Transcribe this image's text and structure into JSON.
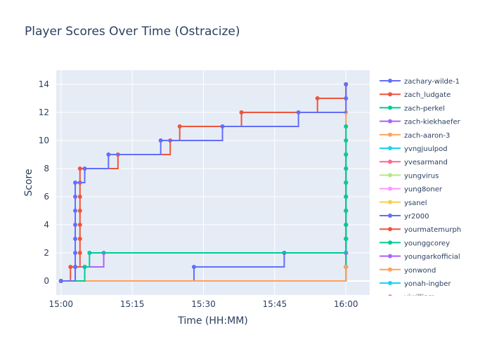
{
  "chart_data": {
    "type": "line",
    "title": "Player Scores Over Time (Ostracize)",
    "xlabel": "Time (HH:MM)",
    "ylabel": "Score",
    "x_unit": "HH:MM",
    "xlim": [
      "14:59",
      "16:05"
    ],
    "ylim": [
      -1,
      15
    ],
    "x_ticks": [
      "15:00",
      "15:15",
      "15:30",
      "15:45",
      "16:00"
    ],
    "y_ticks": [
      0,
      2,
      4,
      6,
      8,
      10,
      12,
      14
    ],
    "grid": true,
    "line_shape": "step-after",
    "legend_position": "right",
    "legend_scrollable": true,
    "series": [
      {
        "name": "zachary-wilde-1",
        "color": "#636efa",
        "x": [
          "15:00",
          "15:03",
          "15:03",
          "15:03",
          "15:03",
          "15:03",
          "15:03",
          "15:03",
          "15:05",
          "15:10",
          "15:21",
          "15:34",
          "15:50",
          "16:00",
          "16:00"
        ],
        "y": [
          0,
          1,
          2,
          3,
          4,
          5,
          6,
          7,
          8,
          9,
          10,
          11,
          12,
          13,
          14
        ]
      },
      {
        "name": "zach_ludgate",
        "color": "#ef553b",
        "x": [
          "15:00",
          "15:02",
          "15:04",
          "15:04",
          "15:04",
          "15:04",
          "15:04",
          "15:04",
          "15:04",
          "15:12",
          "15:23",
          "15:25",
          "15:38",
          "15:54",
          "16:00"
        ],
        "y": [
          0,
          1,
          2,
          3,
          4,
          5,
          6,
          7,
          8,
          9,
          10,
          11,
          12,
          13,
          14
        ]
      },
      {
        "name": "zach-perkel",
        "color": "#00cc96",
        "x": [
          "15:00",
          "15:05",
          "15:06",
          "16:00"
        ],
        "y": [
          0,
          1,
          2,
          3
        ]
      },
      {
        "name": "zach-kiekhaefer",
        "color": "#ab63fa",
        "x": [
          "15:00",
          "15:03",
          "15:05",
          "15:09",
          "16:00"
        ],
        "y": [
          0,
          1,
          1,
          2,
          2
        ]
      },
      {
        "name": "zach-aaron-3",
        "color": "#ffa15a",
        "x": [
          "15:00",
          "16:00"
        ],
        "y": [
          0,
          1
        ]
      },
      {
        "name": "yvngjuulpod",
        "color": "#19d3f3",
        "x": [
          "15:00",
          "16:00"
        ],
        "y": [
          0,
          1
        ]
      },
      {
        "name": "yvesarmand",
        "color": "#ff6692",
        "x": [
          "15:00",
          "16:00"
        ],
        "y": [
          0,
          1
        ]
      },
      {
        "name": "yungvirus",
        "color": "#b6e880",
        "x": [
          "15:00",
          "16:00"
        ],
        "y": [
          0,
          1
        ]
      },
      {
        "name": "yung8oner",
        "color": "#ff97ff",
        "x": [
          "15:00",
          "16:00"
        ],
        "y": [
          0,
          1
        ]
      },
      {
        "name": "ysanel",
        "color": "#fecb52",
        "x": [
          "15:00",
          "16:00"
        ],
        "y": [
          0,
          1
        ]
      },
      {
        "name": "yr2000",
        "color": "#636efa",
        "x": [
          "15:00",
          "15:28",
          "15:47",
          "16:00"
        ],
        "y": [
          0,
          1,
          2,
          3
        ]
      },
      {
        "name": "yourmatemurph",
        "color": "#ef553b",
        "x": [
          "15:00",
          "16:00"
        ],
        "y": [
          0,
          1
        ]
      },
      {
        "name": "younggcorey",
        "color": "#00cc96",
        "x": [
          "15:00",
          "16:00",
          "16:00",
          "16:00",
          "16:00",
          "16:00",
          "16:00",
          "16:00",
          "16:00",
          "16:00",
          "16:00",
          "16:00"
        ],
        "y": [
          0,
          1,
          2,
          3,
          4,
          5,
          6,
          7,
          8,
          9,
          10,
          11
        ]
      },
      {
        "name": "youngarkofficial",
        "color": "#ab63fa",
        "x": [
          "15:00",
          "16:00",
          "16:00",
          "16:00",
          "16:00",
          "16:00",
          "16:00",
          "16:00",
          "16:00",
          "16:00"
        ],
        "y": [
          0,
          1,
          2,
          3,
          4,
          5,
          6,
          7,
          8,
          9
        ]
      },
      {
        "name": "yonwond",
        "color": "#ffa15a",
        "x": [
          "15:00",
          "16:00",
          "16:00",
          "16:00",
          "16:00",
          "16:00",
          "16:00",
          "16:00",
          "16:00",
          "16:00",
          "16:00",
          "16:00",
          "16:00",
          "16:00",
          "16:00"
        ],
        "y": [
          0,
          1,
          2,
          3,
          4,
          5,
          6,
          7,
          8,
          9,
          10,
          11,
          12,
          13,
          14
        ]
      },
      {
        "name": "yonah-ingber",
        "color": "#19d3f3",
        "x": [
          "15:00",
          "16:00",
          "16:00",
          "16:00",
          "16:00",
          "16:00",
          "16:00",
          "16:00",
          "16:00"
        ],
        "y": [
          0,
          1,
          2,
          3,
          4,
          5,
          6,
          7,
          8
        ]
      },
      {
        "name": "yiwilliam",
        "color": "#ff6692",
        "x": [
          "15:00",
          "16:00",
          "16:00",
          "16:00",
          "16:00",
          "16:00",
          "16:00",
          "16:00"
        ],
        "y": [
          0,
          1,
          2,
          3,
          4,
          5,
          6,
          7
        ]
      }
    ]
  }
}
